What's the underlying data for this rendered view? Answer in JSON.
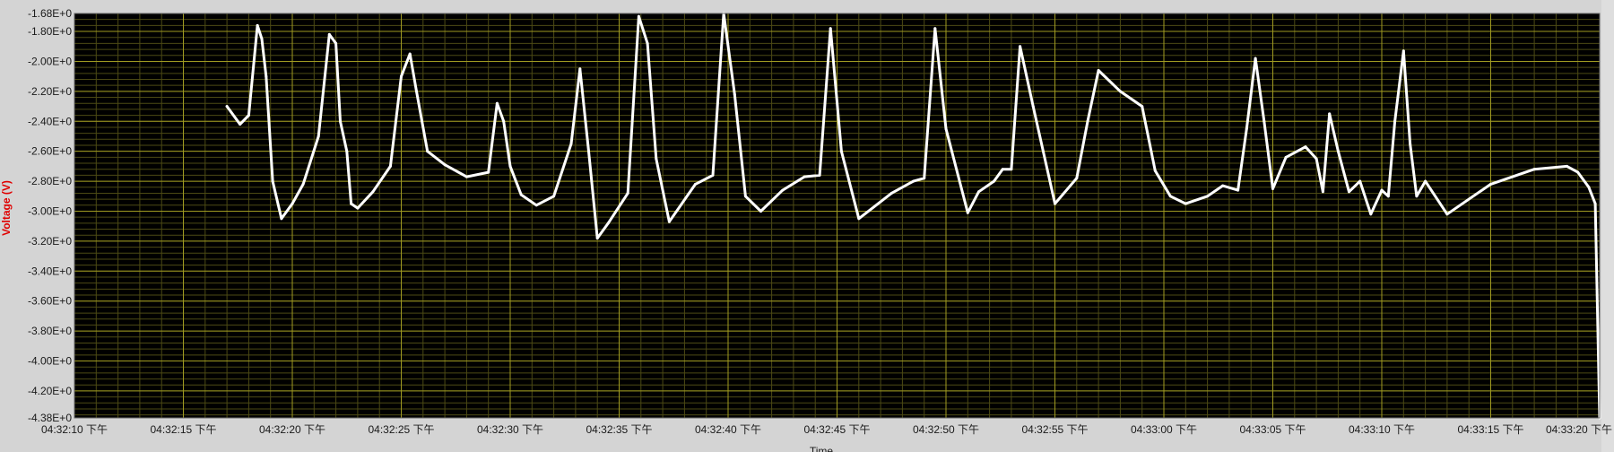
{
  "chart_data": {
    "type": "line",
    "title": "",
    "xlabel": "Time",
    "ylabel": "Voltage (V)",
    "xlim": [
      "04:32:10",
      "04:33:20"
    ],
    "ylim": [
      -4.38,
      -1.68
    ],
    "grid": true,
    "legend": "none",
    "colors": {
      "plot_background": "#000000",
      "major_grid": "#9f9a21",
      "minor_grid": "#4c4a14",
      "trace": "#ffffff",
      "ylabel": "#e00000",
      "frame": "#d4d4d4"
    },
    "x_ticks": [
      "04:32:10 下午",
      "04:32:15 下午",
      "04:32:20 下午",
      "04:32:25 下午",
      "04:32:30 下午",
      "04:32:35 下午",
      "04:32:40 下午",
      "04:32:45 下午",
      "04:32:50 下午",
      "04:32:55 下午",
      "04:33:00 下午",
      "04:33:05 下午",
      "04:33:10 下午",
      "04:33:15 下午",
      "04:33:20 下午"
    ],
    "y_ticks": [
      "-1.68E+0",
      "-1.80E+0",
      "-2.00E+0",
      "-2.20E+0",
      "-2.40E+0",
      "-2.60E+0",
      "-2.80E+0",
      "-3.00E+0",
      "-3.20E+0",
      "-3.40E+0",
      "-3.60E+0",
      "-3.80E+0",
      "-4.00E+0",
      "-4.20E+0",
      "-4.38E+0"
    ],
    "y_tick_values": [
      -1.68,
      -1.8,
      -2.0,
      -2.2,
      -2.4,
      -2.6,
      -2.8,
      -3.0,
      -3.2,
      -3.4,
      -3.6,
      -3.8,
      -4.0,
      -4.2,
      -4.38
    ],
    "series": [
      {
        "x": [
          "04:32:17.0",
          "04:32:17.6",
          "04:32:18.0",
          "04:32:18.4",
          "04:32:18.6",
          "04:32:18.8",
          "04:32:19.1",
          "04:32:19.5",
          "04:32:20.0",
          "04:32:20.5",
          "04:32:21.2",
          "04:32:21.7",
          "04:32:22.0",
          "04:32:22.2",
          "04:32:22.5",
          "04:32:22.7",
          "04:32:23.0",
          "04:32:23.7",
          "04:32:24.5",
          "04:32:25.0",
          "04:32:25.4",
          "04:32:25.7",
          "04:32:26.2",
          "04:32:27.0",
          "04:32:28.0",
          "04:32:29.0",
          "04:32:29.4",
          "04:32:29.7",
          "04:32:30.0",
          "04:32:30.5",
          "04:32:31.2",
          "04:32:32.0",
          "04:32:32.8",
          "04:32:33.2",
          "04:32:33.6",
          "04:32:34.0",
          "04:32:34.5",
          "04:32:35.4",
          "04:32:35.9",
          "04:32:36.3",
          "04:32:36.7",
          "04:32:37.3",
          "04:32:38.5",
          "04:32:39.3",
          "04:32:39.8",
          "04:32:40.3",
          "04:32:40.8",
          "04:32:41.5",
          "04:32:42.5",
          "04:32:43.5",
          "04:32:44.2",
          "04:32:44.7",
          "04:32:45.2",
          "04:32:46.0",
          "04:32:47.5",
          "04:32:48.5",
          "04:32:49.0",
          "04:32:49.5",
          "04:32:50.0",
          "04:32:51.0",
          "04:32:51.5",
          "04:32:52.2",
          "04:32:52.6",
          "04:32:53.0",
          "04:32:53.4",
          "04:32:54.0",
          "04:32:55.0",
          "04:32:56.0",
          "04:32:56.5",
          "04:32:57.0",
          "04:32:58.0",
          "04:32:59.0",
          "04:32:59.6",
          "04:33:00.3",
          "04:33:01.0",
          "04:33:02.0",
          "04:33:02.7",
          "04:33:03.4",
          "04:33:03.8",
          "04:33:04.2",
          "04:33:04.6",
          "04:33:05.0",
          "04:33:05.6",
          "04:33:06.5",
          "04:33:07.0",
          "04:33:07.3",
          "04:33:07.6",
          "04:33:08.0",
          "04:33:08.5",
          "04:33:09.0",
          "04:33:09.5",
          "04:33:10.0",
          "04:33:10.3",
          "04:33:10.6",
          "04:33:11.0",
          "04:33:11.3",
          "04:33:11.6",
          "04:33:12.0",
          "04:33:13.0",
          "04:33:15.0",
          "04:33:17.0",
          "04:33:18.5",
          "04:33:19.0",
          "04:33:19.5",
          "04:33:19.8",
          "04:33:20.0"
        ],
        "values": [
          -2.3,
          -2.42,
          -2.36,
          -1.76,
          -1.85,
          -2.1,
          -2.8,
          -3.05,
          -2.95,
          -2.82,
          -2.5,
          -1.82,
          -1.88,
          -2.4,
          -2.6,
          -2.95,
          -2.98,
          -2.87,
          -2.7,
          -2.1,
          -1.95,
          -2.2,
          -2.6,
          -2.69,
          -2.77,
          -2.74,
          -2.28,
          -2.4,
          -2.7,
          -2.89,
          -2.96,
          -2.9,
          -2.55,
          -2.05,
          -2.6,
          -3.18,
          -3.08,
          -2.88,
          -1.7,
          -1.88,
          -2.65,
          -3.07,
          -2.82,
          -2.76,
          -1.68,
          -2.22,
          -2.9,
          -3.0,
          -2.86,
          -2.77,
          -2.76,
          -1.78,
          -2.6,
          -3.05,
          -2.88,
          -2.8,
          -2.78,
          -1.78,
          -2.45,
          -3.01,
          -2.87,
          -2.8,
          -2.72,
          -2.72,
          -1.9,
          -2.3,
          -2.95,
          -2.78,
          -2.4,
          -2.06,
          -2.2,
          -2.3,
          -2.73,
          -2.9,
          -2.95,
          -2.9,
          -2.83,
          -2.86,
          -2.45,
          -1.98,
          -2.4,
          -2.85,
          -2.64,
          -2.57,
          -2.65,
          -2.87,
          -2.35,
          -2.6,
          -2.87,
          -2.8,
          -3.02,
          -2.86,
          -2.9,
          -2.4,
          -1.93,
          -2.55,
          -2.9,
          -2.8,
          -3.02,
          -2.82,
          -2.72,
          -2.7,
          -2.74,
          -2.84,
          -2.95,
          -4.38
        ]
      }
    ]
  }
}
